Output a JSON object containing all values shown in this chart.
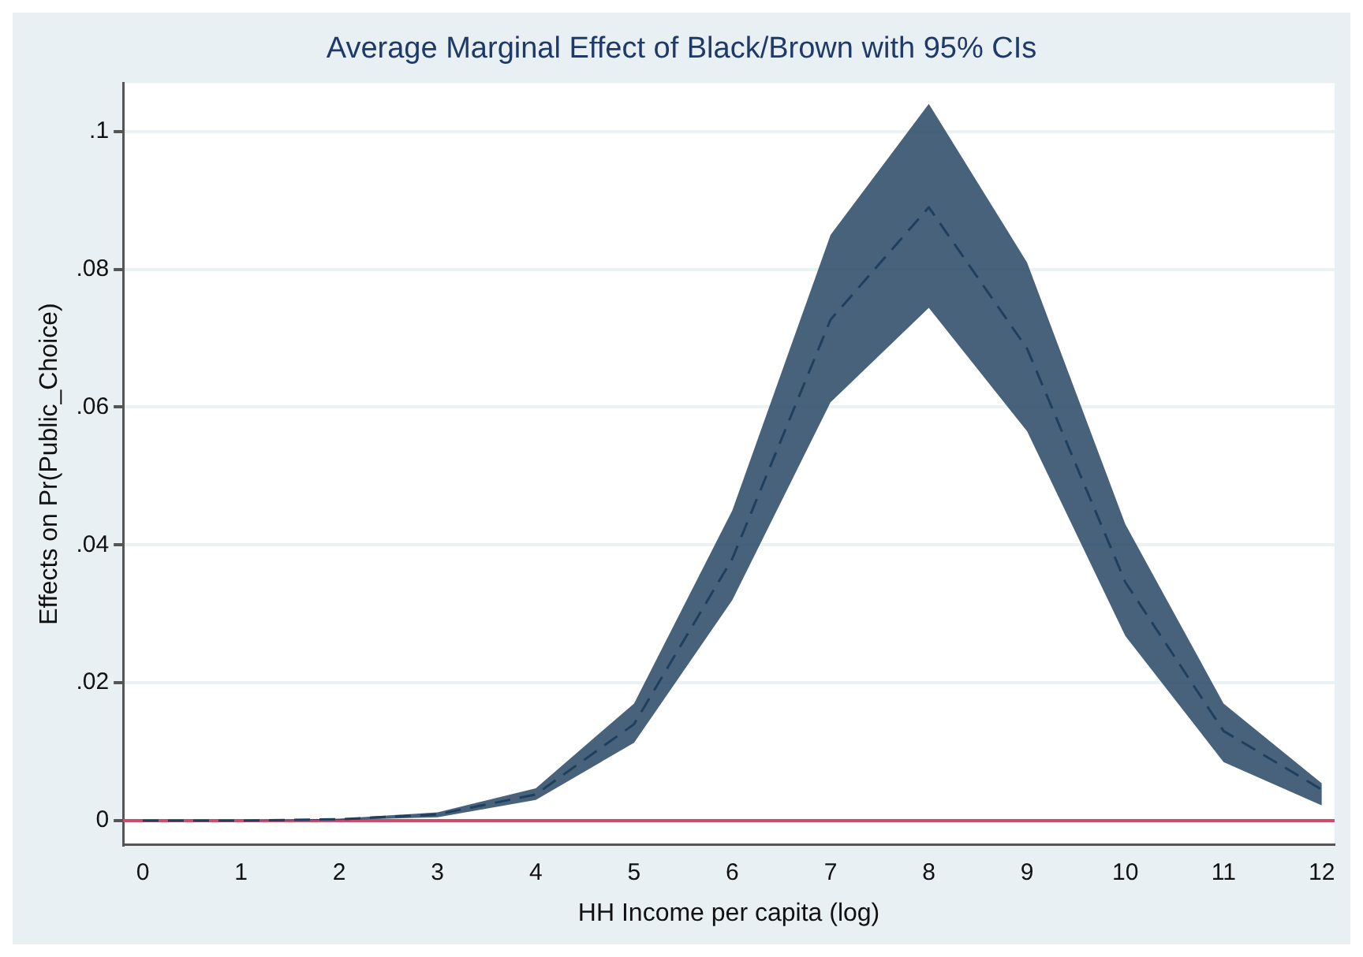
{
  "chart_data": {
    "type": "line",
    "title": "Average Marginal Effect of Black/Brown with 95% CIs",
    "xlabel": "HH Income per capita (log)",
    "ylabel": "Effects on Pr(Public_Choice)",
    "x": [
      0,
      1,
      2,
      3,
      4,
      5,
      6,
      7,
      8,
      9,
      10,
      11,
      12
    ],
    "series": [
      {
        "color": "#1f3f5f",
        "line_style": "dashed",
        "values": [
          0,
          0,
          0.0002,
          0.0009,
          0.0038,
          0.014,
          0.038,
          0.0727,
          0.089,
          0.0685,
          0.0346,
          0.013,
          0.0045
        ],
        "lower": [
          0,
          0,
          0.0001,
          0.0005,
          0.003,
          0.0113,
          0.032,
          0.0607,
          0.0744,
          0.0565,
          0.0268,
          0.0085,
          0.0022
        ],
        "upper": [
          0,
          0,
          0.0003,
          0.0012,
          0.0047,
          0.017,
          0.045,
          0.085,
          0.104,
          0.081,
          0.043,
          0.017,
          0.0054
        ]
      }
    ],
    "xlim": [
      -0.2,
      12.13
    ],
    "xticks": [
      0,
      1,
      2,
      3,
      4,
      5,
      6,
      7,
      8,
      9,
      10,
      11,
      12
    ],
    "ylim": [
      -0.0035,
      0.107
    ],
    "yticks": [
      0,
      {
        "value": 0.02,
        "label": ".02"
      },
      {
        "value": 0.04,
        "label": ".04"
      },
      {
        "value": 0.06,
        "label": ".06"
      },
      {
        "value": 0.08,
        "label": ".08"
      },
      {
        "value": 0.1,
        "label": ".1"
      }
    ],
    "grid": "y",
    "legend": false,
    "marker": "none",
    "ref_lines": [
      {
        "axis": "y",
        "value": 0,
        "color": "#d04a6a"
      }
    ]
  }
}
